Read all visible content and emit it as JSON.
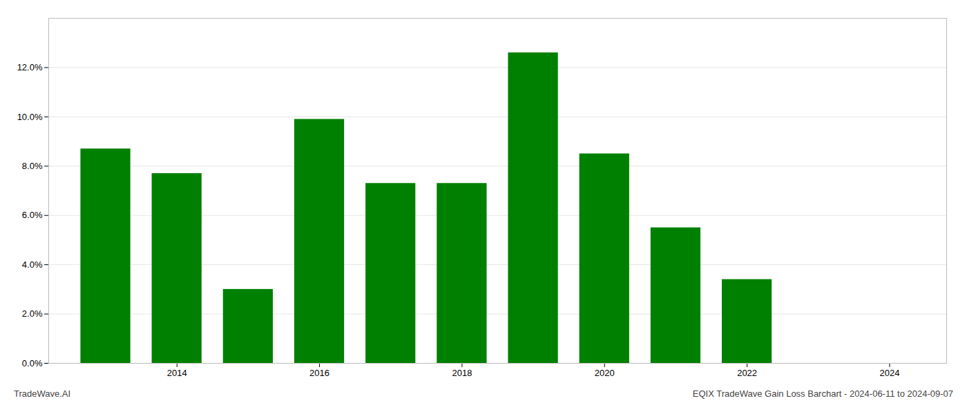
{
  "chart_data": {
    "type": "bar",
    "x": [
      2013,
      2014,
      2015,
      2016,
      2017,
      2018,
      2019,
      2020,
      2021,
      2022
    ],
    "values": [
      0.087,
      0.077,
      0.03,
      0.099,
      0.073,
      0.073,
      0.126,
      0.085,
      0.055,
      0.034
    ],
    "color": "#008000",
    "xlim": [
      2012.2,
      2024.8
    ],
    "xticks": [
      2014,
      2016,
      2018,
      2020,
      2022,
      2024
    ],
    "ylim": [
      0,
      0.14
    ],
    "yticks": [
      {
        "value": 0.0,
        "label": "0.0%"
      },
      {
        "value": 0.02,
        "label": "2.0%"
      },
      {
        "value": 0.04,
        "label": "4.0%"
      },
      {
        "value": 0.06,
        "label": "6.0%"
      },
      {
        "value": 0.08,
        "label": "8.0%"
      },
      {
        "value": 0.1,
        "label": "10.0%"
      },
      {
        "value": 0.12,
        "label": "12.0%"
      }
    ],
    "grid": true,
    "annotations": [
      "TradeWave.AI",
      "EQIX TradeWave Gain Loss Barchart - 2024-06-11 to 2024-09-07"
    ]
  }
}
